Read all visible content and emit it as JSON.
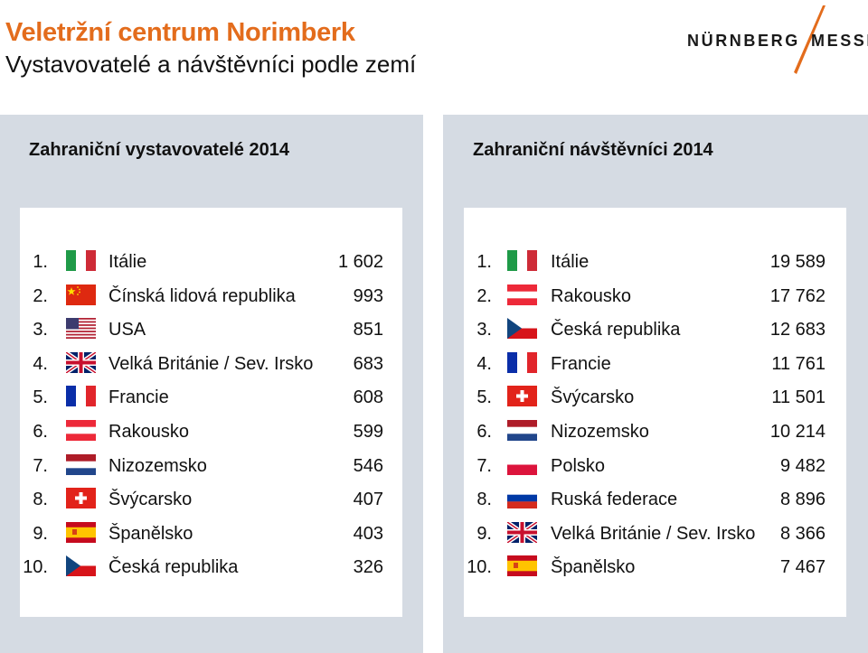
{
  "header": {
    "title": "Veletržní centrum Norimberk",
    "subtitle": "Vystavovatelé a návštěvníci podle zemí"
  },
  "logo": {
    "left": "NÜRNBERG",
    "right": "MESSE",
    "accent": "#e36c1c"
  },
  "exhibitors": {
    "title": "Zahraniční vystavovatelé 2014",
    "rows": [
      {
        "rank": "1.",
        "flag": "it",
        "country": "Itálie",
        "value": "1 602"
      },
      {
        "rank": "2.",
        "flag": "cn",
        "country": "Čínská lidová republika",
        "value": "993"
      },
      {
        "rank": "3.",
        "flag": "us",
        "country": "USA",
        "value": "851"
      },
      {
        "rank": "4.",
        "flag": "gb",
        "country": "Velká Británie / Sev. Irsko",
        "value": "683"
      },
      {
        "rank": "5.",
        "flag": "fr",
        "country": "Francie",
        "value": "608"
      },
      {
        "rank": "6.",
        "flag": "at",
        "country": "Rakousko",
        "value": "599"
      },
      {
        "rank": "7.",
        "flag": "nl",
        "country": "Nizozemsko",
        "value": "546"
      },
      {
        "rank": "8.",
        "flag": "ch",
        "country": "Švýcarsko",
        "value": "407"
      },
      {
        "rank": "9.",
        "flag": "es",
        "country": "Španělsko",
        "value": "403"
      },
      {
        "rank": "10.",
        "flag": "cz",
        "country": "Česká republika",
        "value": "326"
      }
    ]
  },
  "visitors": {
    "title": "Zahraniční návštěvníci 2014",
    "rows": [
      {
        "rank": "1.",
        "flag": "it",
        "country": "Itálie",
        "value": "19 589"
      },
      {
        "rank": "2.",
        "flag": "at",
        "country": "Rakousko",
        "value": "17 762"
      },
      {
        "rank": "3.",
        "flag": "cz",
        "country": "Česká republika",
        "value": "12 683"
      },
      {
        "rank": "4.",
        "flag": "fr",
        "country": "Francie",
        "value": "11 761"
      },
      {
        "rank": "5.",
        "flag": "ch",
        "country": "Švýcarsko",
        "value": "11 501"
      },
      {
        "rank": "6.",
        "flag": "nl",
        "country": "Nizozemsko",
        "value": "10 214"
      },
      {
        "rank": "7.",
        "flag": "pl",
        "country": "Polsko",
        "value": "9 482"
      },
      {
        "rank": "8.",
        "flag": "ru",
        "country": "Ruská federace",
        "value": "8 896"
      },
      {
        "rank": "9.",
        "flag": "gb",
        "country": "Velká Británie / Sev. Irsko",
        "value": "8 366"
      },
      {
        "rank": "10.",
        "flag": "es",
        "country": "Španělsko",
        "value": "7 467"
      }
    ]
  }
}
